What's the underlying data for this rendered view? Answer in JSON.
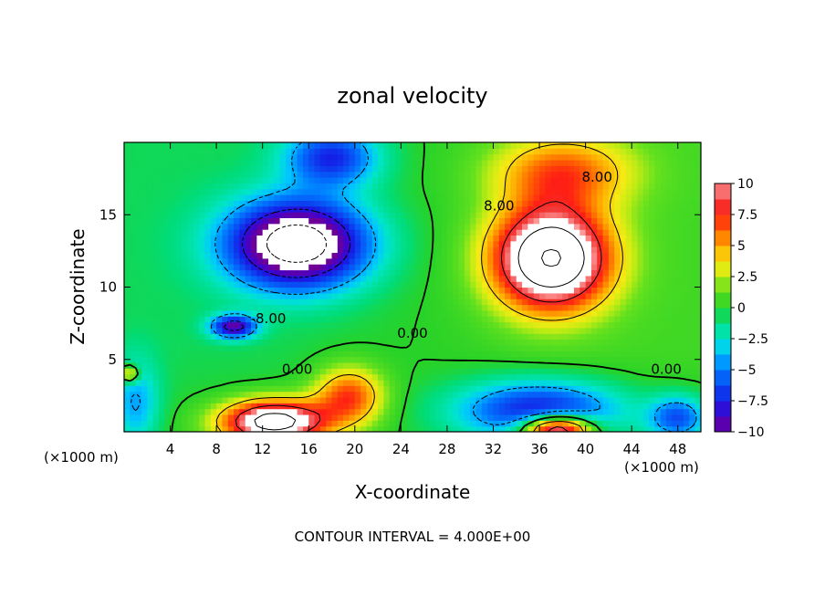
{
  "chart_data": {
    "type": "heatmap",
    "title": "zonal velocity",
    "xlabel": "X-coordinate",
    "ylabel": "Z-coordinate",
    "x_unit_left": "(×1000 m)",
    "x_unit_right": "(×1000 m)",
    "footer": "CONTOUR INTERVAL = 4.000E+00",
    "xlim": [
      0,
      50
    ],
    "ylim": [
      0,
      20
    ],
    "x_ticks": [
      "4",
      "8",
      "12",
      "16",
      "20",
      "24",
      "28",
      "32",
      "36",
      "40",
      "44",
      "48"
    ],
    "x_tick_values": [
      4,
      8,
      12,
      16,
      20,
      24,
      28,
      32,
      36,
      40,
      44,
      48
    ],
    "y_ticks": [
      "5",
      "10",
      "15"
    ],
    "y_tick_values": [
      5,
      10,
      15
    ],
    "colorbar": {
      "labels": [
        "10",
        "7.5",
        "5",
        "2.5",
        "0",
        "-2.5",
        "-5",
        "-7.5",
        "-10"
      ],
      "values": [
        10,
        7.5,
        5,
        2.5,
        0,
        -2.5,
        -5,
        -7.5,
        -10
      ],
      "range": [
        -10,
        10
      ]
    },
    "contour_interval": 4.0,
    "contour_labels": [
      {
        "text": "8.00",
        "x": 32.5,
        "z": 15.3
      },
      {
        "text": "8.00",
        "x": 41.0,
        "z": 17.3
      },
      {
        "text": "-8.00",
        "x": 12.5,
        "z": 7.5
      },
      {
        "text": "0.00",
        "x": 15.0,
        "z": 4.0
      },
      {
        "text": "0.00",
        "x": 25.0,
        "z": 6.5
      },
      {
        "text": "0.00",
        "x": 47.0,
        "z": 4.0
      }
    ],
    "features": [
      {
        "name": "negative-core",
        "x": 15.0,
        "z": 13.0,
        "sx": 6.0,
        "sz": 3.0,
        "amp": -14
      },
      {
        "name": "negative-tail",
        "x": 9.5,
        "z": 7.3,
        "sx": 2.0,
        "sz": 0.8,
        "amp": -9
      },
      {
        "name": "negative-top",
        "x": 18.0,
        "z": 19.0,
        "sx": 4.0,
        "sz": 2.0,
        "amp": -7
      },
      {
        "name": "positive-core",
        "x": 37.0,
        "z": 12.0,
        "sx": 5.0,
        "sz": 3.5,
        "amp": 16
      },
      {
        "name": "positive-top",
        "x": 38.0,
        "z": 18.0,
        "sx": 6.0,
        "sz": 2.5,
        "amp": 6
      },
      {
        "name": "positive-bottom-left",
        "x": 13.0,
        "z": 0.7,
        "sx": 4.5,
        "sz": 1.5,
        "amp": 14
      },
      {
        "name": "positive-bottom-mid",
        "x": 19.5,
        "z": 2.5,
        "sx": 3.0,
        "sz": 2.0,
        "amp": 7
      },
      {
        "name": "negative-bottom-right",
        "x": 36.0,
        "z": 1.5,
        "sx": 7.0,
        "sz": 2.0,
        "amp": -8
      },
      {
        "name": "positive-bottom-right",
        "x": 37.5,
        "z": 0.2,
        "sx": 3.0,
        "sz": 1.0,
        "amp": 14
      },
      {
        "name": "negative-left-edge",
        "x": 1.0,
        "z": 2.0,
        "sx": 2.0,
        "sz": 3.0,
        "amp": -4
      },
      {
        "name": "negative-right-edge",
        "x": 48.0,
        "z": 1.0,
        "sx": 2.5,
        "sz": 1.5,
        "amp": -6
      },
      {
        "name": "positive-left-small",
        "x": 0.5,
        "z": 4.0,
        "sx": 0.8,
        "sz": 0.6,
        "amp": 6
      }
    ]
  }
}
